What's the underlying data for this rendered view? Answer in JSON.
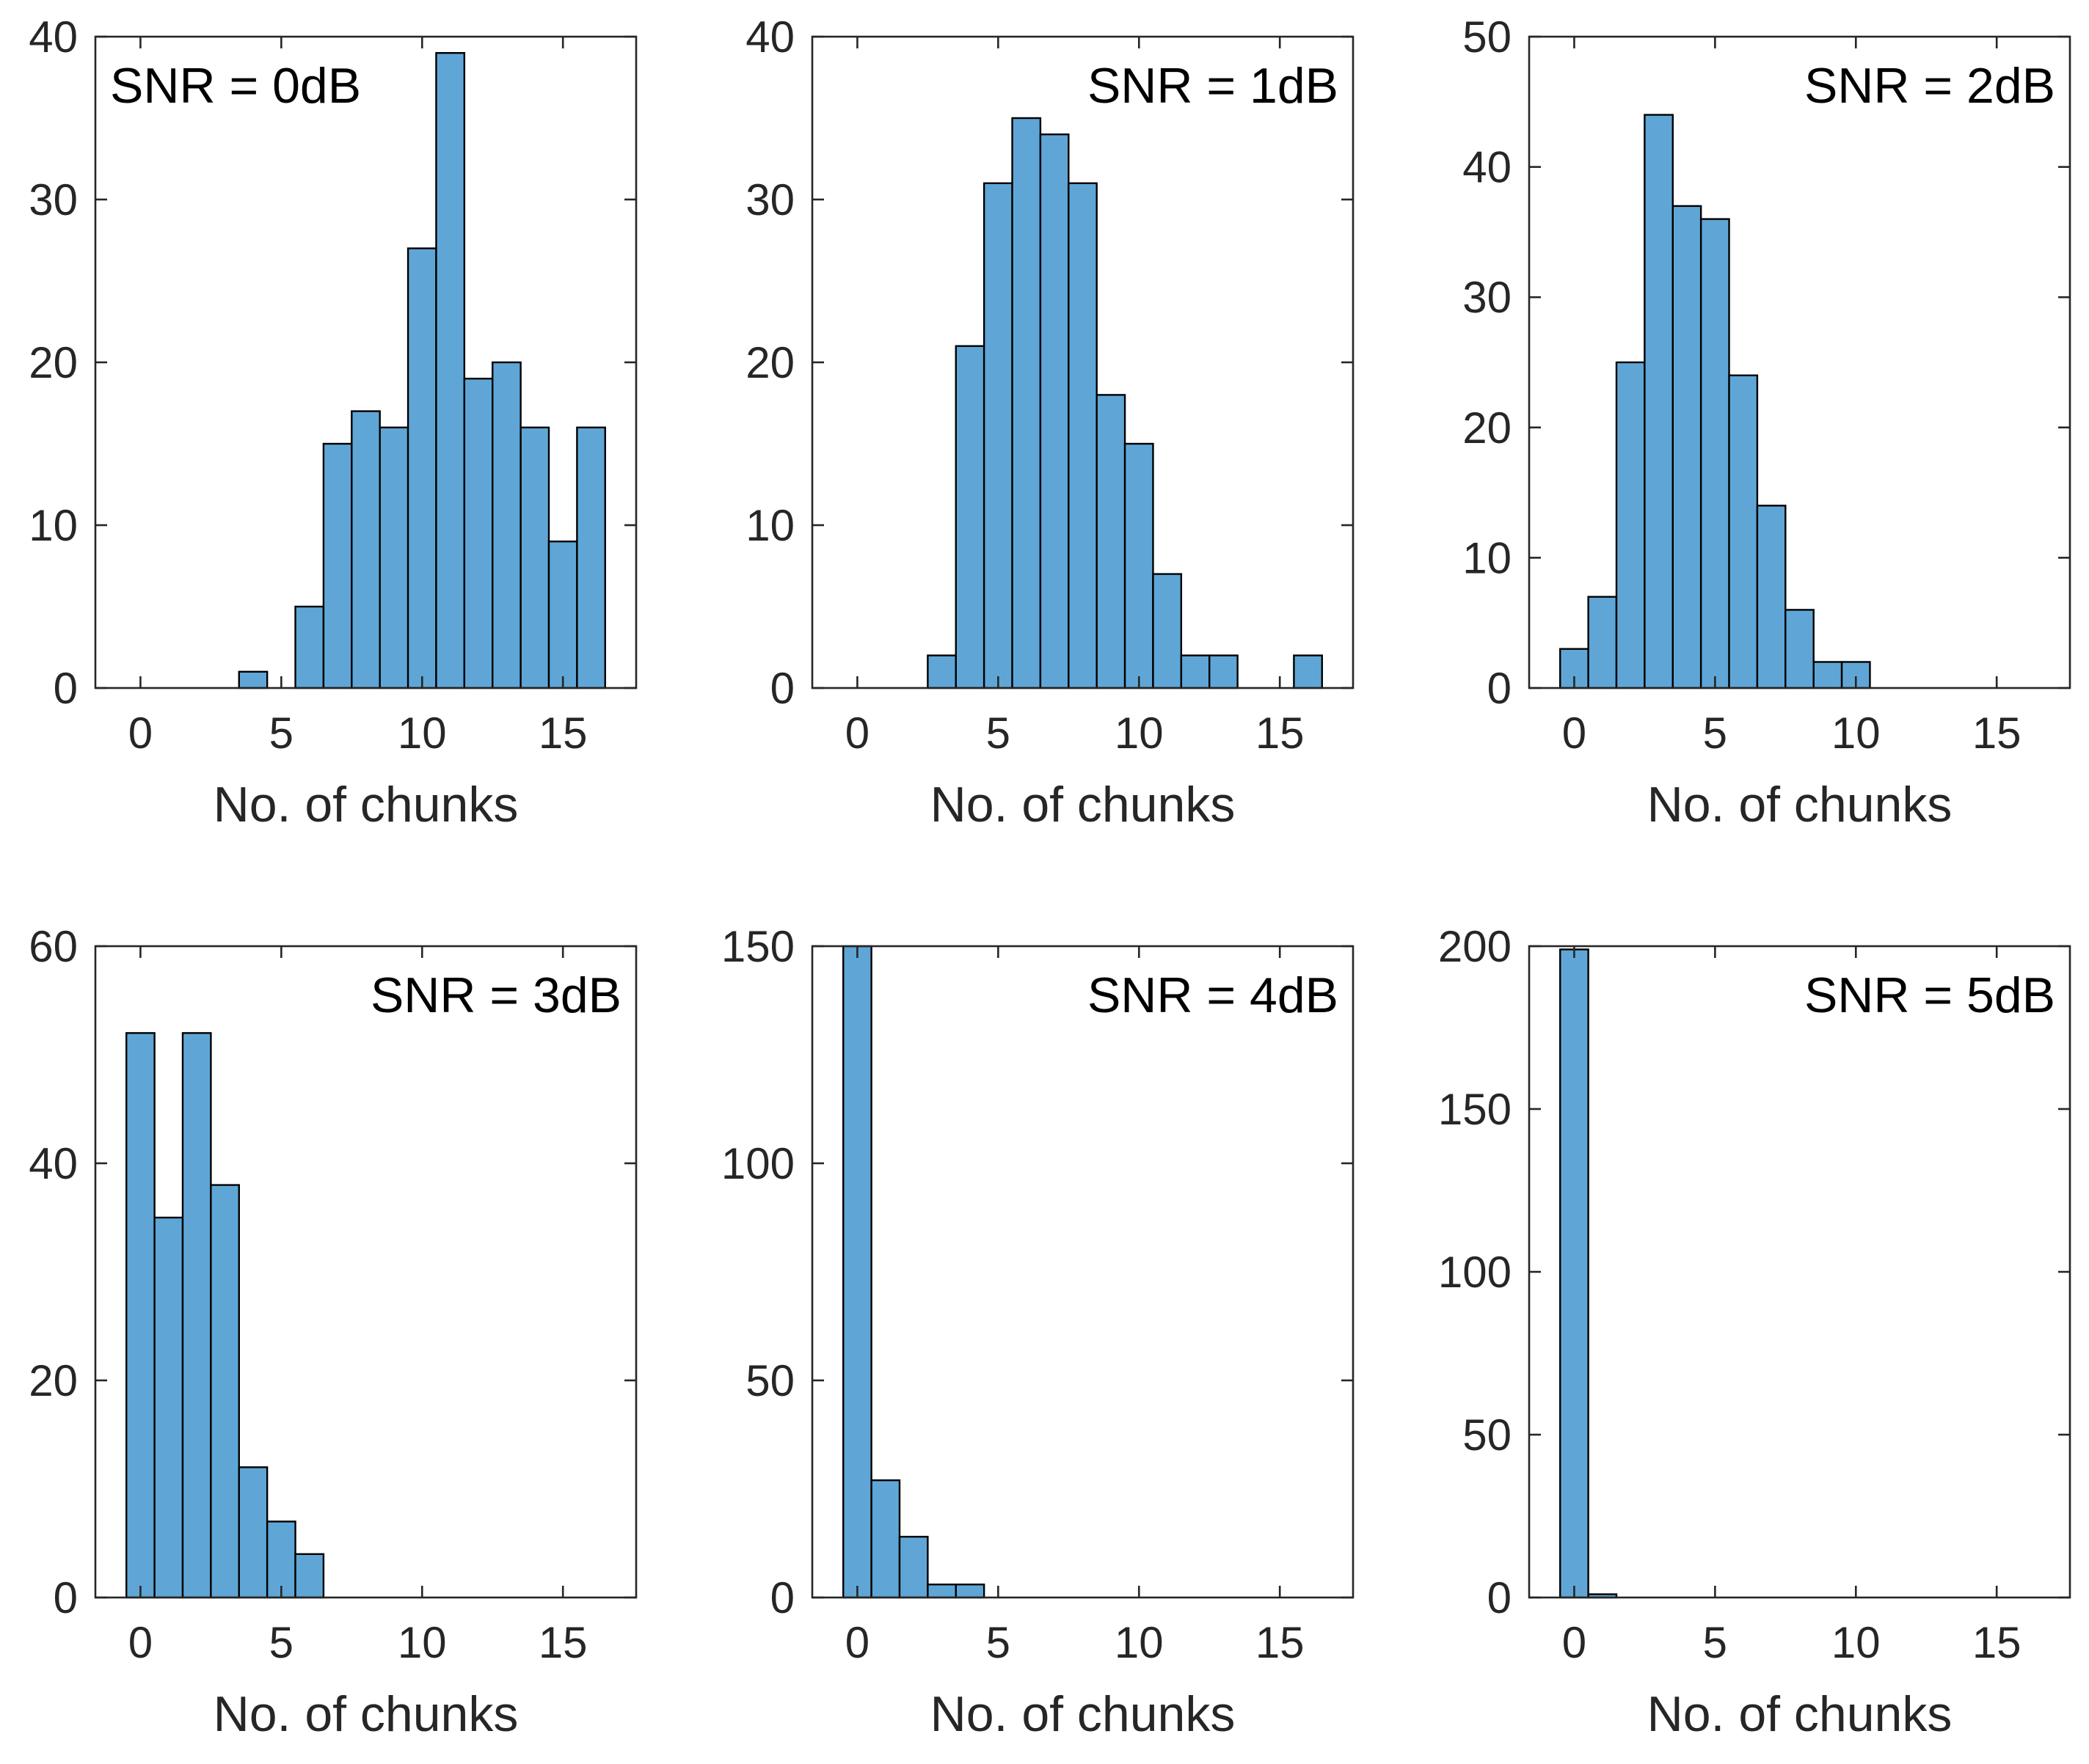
{
  "colors": {
    "bar_fill": "#5fa6d6",
    "bar_edge": "#000000",
    "axis": "#262626",
    "background": "#ffffff"
  },
  "chart_data": [
    {
      "type": "bar",
      "annotation": "SNR = 0dB",
      "annotation_position": "top-left",
      "xlabel": "No. of chunks",
      "ylabel": "",
      "xlim": [
        -1.6,
        17.6
      ],
      "ylim": [
        0,
        40
      ],
      "xticks": [
        0,
        5,
        10,
        15
      ],
      "xtick_labels": [
        "0",
        "5",
        "10",
        "15"
      ],
      "yticks": [
        0,
        10,
        20,
        30,
        40
      ],
      "ytick_labels": [
        "0",
        "10",
        "20",
        "30",
        "40"
      ],
      "bin_width": 1,
      "bin_centers": [
        4,
        6,
        7,
        8,
        9,
        10,
        11,
        12,
        13,
        14,
        15,
        16
      ],
      "values": [
        1,
        5,
        15,
        17,
        16,
        27,
        39,
        19,
        20,
        16,
        9,
        16
      ]
    },
    {
      "type": "bar",
      "annotation": "SNR = 1dB",
      "annotation_position": "top-right",
      "xlabel": "No. of chunks",
      "ylabel": "",
      "xlim": [
        -1.6,
        17.6
      ],
      "ylim": [
        0,
        40
      ],
      "xticks": [
        0,
        5,
        10,
        15
      ],
      "xtick_labels": [
        "0",
        "5",
        "10",
        "15"
      ],
      "yticks": [
        0,
        10,
        20,
        30,
        40
      ],
      "ytick_labels": [
        "0",
        "10",
        "20",
        "30",
        "40"
      ],
      "bin_width": 1,
      "bin_centers": [
        3,
        4,
        5,
        6,
        7,
        8,
        9,
        10,
        11,
        12,
        13,
        16
      ],
      "values": [
        2,
        21,
        31,
        35,
        34,
        31,
        18,
        15,
        7,
        2,
        2,
        2
      ]
    },
    {
      "type": "bar",
      "annotation": "SNR = 2dB",
      "annotation_position": "top-right",
      "xlabel": "No. of chunks",
      "ylabel": "",
      "xlim": [
        -1.6,
        17.6
      ],
      "ylim": [
        0,
        50
      ],
      "xticks": [
        0,
        5,
        10,
        15
      ],
      "xtick_labels": [
        "0",
        "5",
        "10",
        "15"
      ],
      "yticks": [
        0,
        10,
        20,
        30,
        40,
        50
      ],
      "ytick_labels": [
        "0",
        "10",
        "20",
        "30",
        "40",
        "50"
      ],
      "bin_width": 1,
      "bin_centers": [
        0,
        1,
        2,
        3,
        4,
        5,
        6,
        7,
        8,
        9,
        10
      ],
      "values": [
        3,
        7,
        25,
        44,
        37,
        36,
        24,
        14,
        6,
        2,
        2
      ]
    },
    {
      "type": "bar",
      "annotation": "SNR = 3dB",
      "annotation_position": "top-right",
      "xlabel": "No. of chunks",
      "ylabel": "",
      "xlim": [
        -1.6,
        17.6
      ],
      "ylim": [
        0,
        60
      ],
      "xticks": [
        0,
        5,
        10,
        15
      ],
      "xtick_labels": [
        "0",
        "5",
        "10",
        "15"
      ],
      "yticks": [
        0,
        20,
        40,
        60
      ],
      "ytick_labels": [
        "0",
        "20",
        "40",
        "60"
      ],
      "bin_width": 1,
      "bin_centers": [
        0,
        1,
        2,
        3,
        4,
        5,
        6
      ],
      "values": [
        52,
        35,
        52,
        38,
        12,
        7,
        4
      ]
    },
    {
      "type": "bar",
      "annotation": "SNR = 4dB",
      "annotation_position": "top-right",
      "xlabel": "No. of chunks",
      "ylabel": "",
      "xlim": [
        -1.6,
        17.6
      ],
      "ylim": [
        0,
        150
      ],
      "xticks": [
        0,
        5,
        10,
        15
      ],
      "xtick_labels": [
        "0",
        "5",
        "10",
        "15"
      ],
      "yticks": [
        0,
        50,
        100,
        150
      ],
      "ytick_labels": [
        "0",
        "50",
        "100",
        "150"
      ],
      "bin_width": 1,
      "bin_centers": [
        0,
        1,
        2,
        3,
        4
      ],
      "values": [
        152,
        27,
        14,
        3,
        3
      ]
    },
    {
      "type": "bar",
      "annotation": "SNR = 5dB",
      "annotation_position": "top-right",
      "xlabel": "No. of chunks",
      "ylabel": "",
      "xlim": [
        -1.6,
        17.6
      ],
      "ylim": [
        0,
        200
      ],
      "xticks": [
        0,
        5,
        10,
        15
      ],
      "xtick_labels": [
        "0",
        "5",
        "10",
        "15"
      ],
      "yticks": [
        0,
        50,
        100,
        150,
        200
      ],
      "ytick_labels": [
        "0",
        "50",
        "100",
        "150",
        "200"
      ],
      "bin_width": 1,
      "bin_centers": [
        0,
        1
      ],
      "values": [
        199,
        1
      ]
    }
  ]
}
